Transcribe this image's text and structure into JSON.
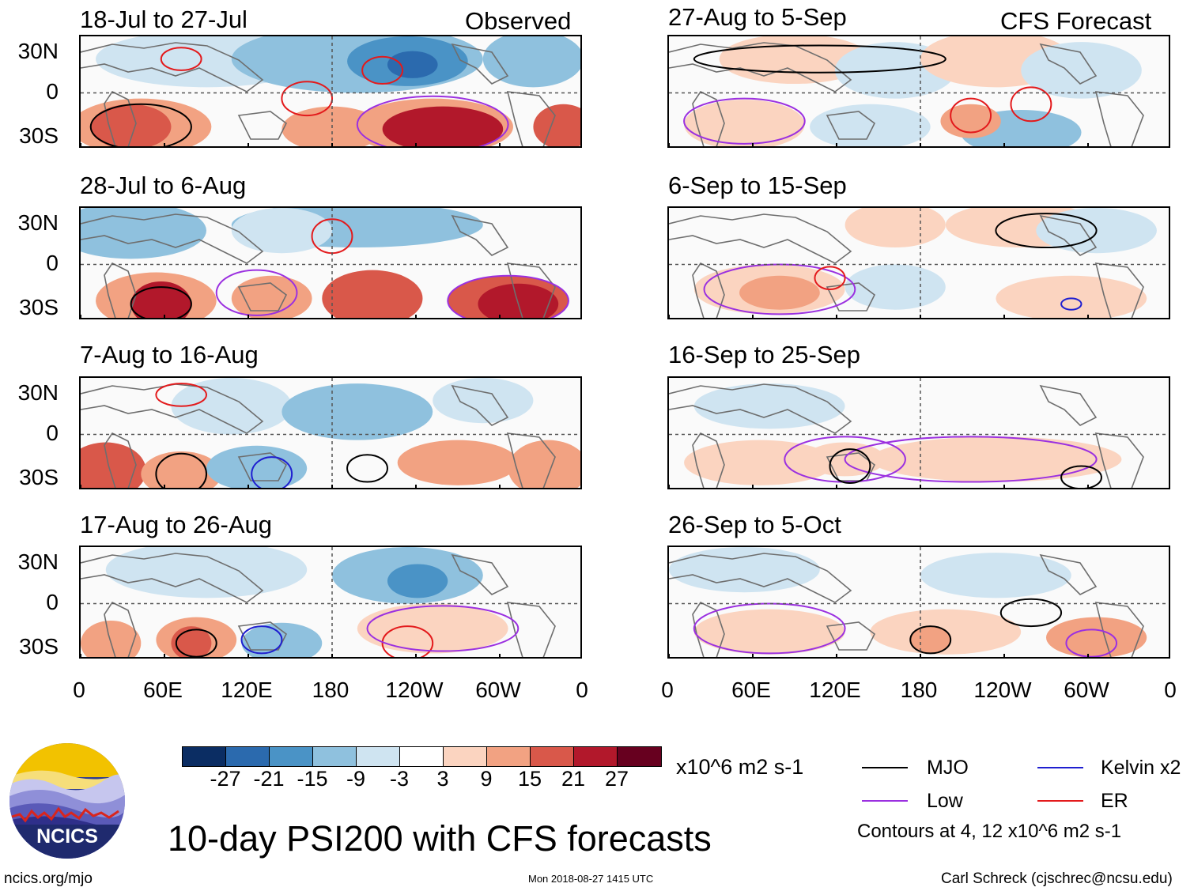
{
  "panels_left": [
    {
      "title": "18-Jul to 27-Jul",
      "tag": "Observed"
    },
    {
      "title": "28-Jul to 6-Aug",
      "tag": ""
    },
    {
      "title": "7-Aug to 16-Aug",
      "tag": ""
    },
    {
      "title": "17-Aug to 26-Aug",
      "tag": ""
    }
  ],
  "panels_right": [
    {
      "title": "27-Aug to 5-Sep",
      "tag": "CFS Forecast"
    },
    {
      "title": "6-Sep to 15-Sep",
      "tag": ""
    },
    {
      "title": "16-Sep to 25-Sep",
      "tag": ""
    },
    {
      "title": "26-Sep to 5-Oct",
      "tag": ""
    }
  ],
  "y_ticks": [
    "30N",
    "0",
    "30S"
  ],
  "x_ticks": [
    "0",
    "60E",
    "120E",
    "180",
    "120W",
    "60W",
    "0"
  ],
  "colorbar": {
    "colors": [
      "#0b2d63",
      "#2b6aae",
      "#4a93c6",
      "#8fc1de",
      "#cfe4f1",
      "#ffffff",
      "#fbd4c0",
      "#f2a282",
      "#d9584a",
      "#b2182b",
      "#67001f"
    ],
    "labels": [
      "-27",
      "-21",
      "-15",
      "-9",
      "-3",
      "3",
      "9",
      "15",
      "21",
      "27"
    ],
    "units": "x10^6 m2 s-1"
  },
  "legend": {
    "items": [
      {
        "label": "MJO",
        "color": "#000000"
      },
      {
        "label": "Kelvin x2",
        "color": "#1f1fd0"
      },
      {
        "label": "Low",
        "color": "#9b30e0"
      },
      {
        "label": "ER",
        "color": "#e31a1c"
      }
    ],
    "note": "Contours at 4, 12 x10^6 m2 s-1"
  },
  "logo_text": "NCICS",
  "main_title": "10-day PSI200 with CFS forecasts",
  "footer": {
    "url": "ncics.org/mjo",
    "timestamp": "Mon 2018-08-27 1415 UTC",
    "author": "Carl Schreck (cjschrec@ncsu.edu)"
  }
}
